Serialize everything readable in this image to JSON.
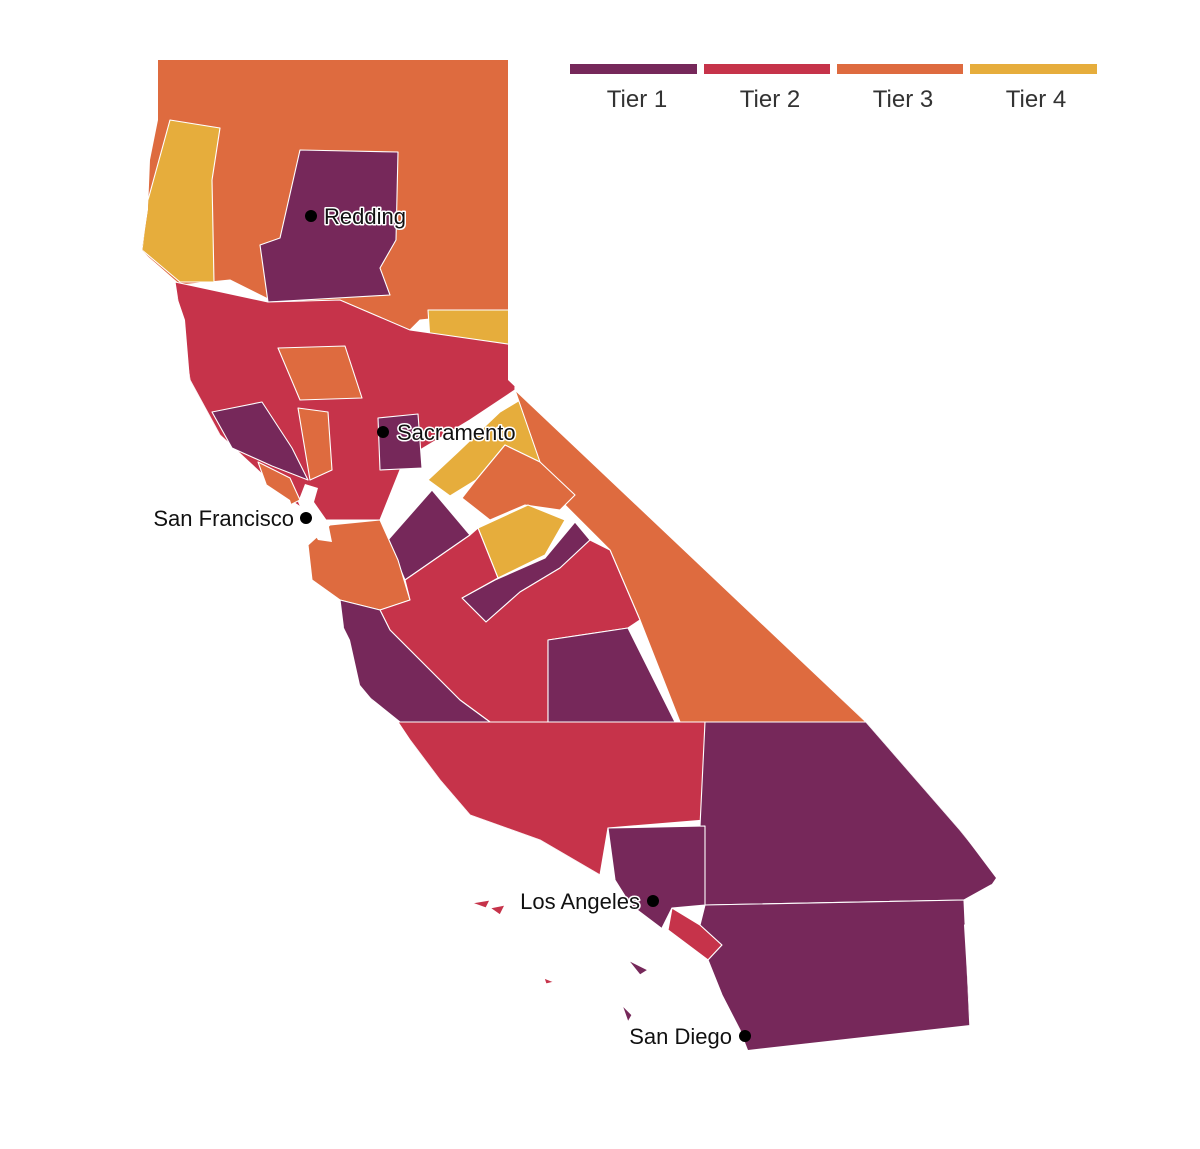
{
  "colors": {
    "tier1": "#76285a",
    "tier2": "#c6334a",
    "tier3": "#de6b3f",
    "tier4": "#e6ad3c"
  },
  "legend": [
    {
      "label": "Tier 1",
      "tier": "tier1"
    },
    {
      "label": "Tier 2",
      "tier": "tier2"
    },
    {
      "label": "Tier 3",
      "tier": "tier3"
    },
    {
      "label": "Tier 4",
      "tier": "tier4"
    }
  ],
  "cities": [
    {
      "name": "Redding",
      "label_side": "right"
    },
    {
      "name": "Sacramento",
      "label_side": "right"
    },
    {
      "name": "San Francisco",
      "label_side": "left"
    },
    {
      "name": "Los Angeles",
      "label_side": "left"
    },
    {
      "name": "San Diego",
      "label_side": "left"
    }
  ]
}
